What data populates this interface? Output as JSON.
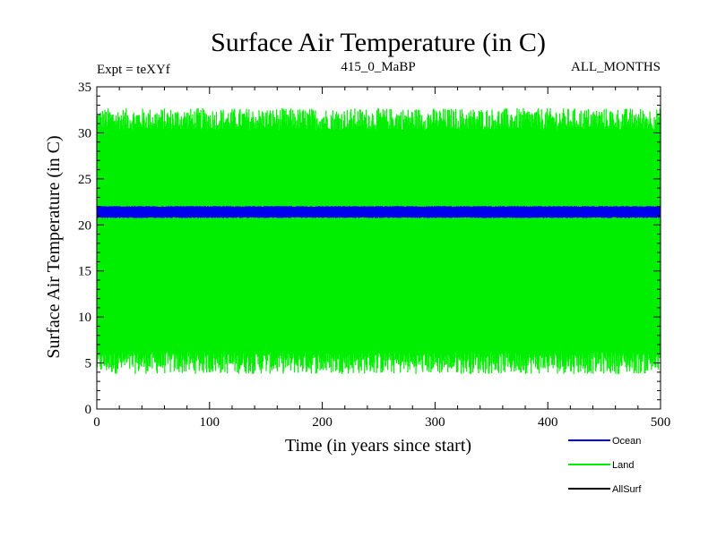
{
  "chart_data": {
    "type": "line",
    "title": "Surface Air Temperature (in C)",
    "header_left": "Expt = teXYf",
    "header_center": "415_0_MaBP",
    "header_right": "ALL_MONTHS",
    "xlabel": "Time (in years since start)",
    "ylabel": "Surface Air Temperature (in C)",
    "xlim": [
      0,
      500
    ],
    "ylim": [
      0,
      35
    ],
    "xticks": [
      0,
      100,
      200,
      300,
      400,
      500
    ],
    "yticks": [
      0,
      5,
      10,
      15,
      20,
      25,
      30,
      35
    ],
    "grid": false,
    "legend_position": "bottom-right",
    "series": [
      {
        "name": "Land",
        "color": "#00ee00",
        "mean_high": 31.5,
        "mean_low": 5.0,
        "seasonal_cycle": true,
        "x_range": [
          0,
          500
        ]
      },
      {
        "name": "Ocean",
        "color": "#0000ee",
        "mean_high": 22.0,
        "mean_low": 20.8,
        "seasonal_cycle": true,
        "x_range": [
          0,
          500
        ]
      },
      {
        "name": "AllSurf",
        "color": "#000000",
        "visible_in_plot": false
      }
    ],
    "legend": [
      "Ocean",
      "Land",
      "AllSurf"
    ]
  }
}
